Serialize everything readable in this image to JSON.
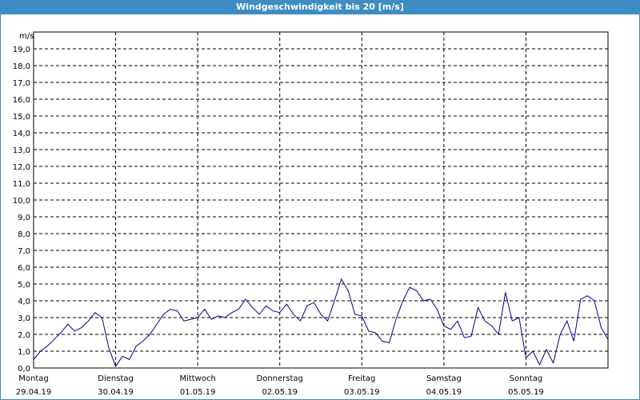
{
  "chart_data": {
    "type": "line",
    "title": "Windgeschwindigkeit bis 20 [m/s]",
    "y_label": "m/s",
    "ylim": [
      0,
      20
    ],
    "yticks": [
      {
        "value": 0,
        "label": "0,0"
      },
      {
        "value": 1,
        "label": "1,0"
      },
      {
        "value": 2,
        "label": "2,0"
      },
      {
        "value": 3,
        "label": "3,0"
      },
      {
        "value": 4,
        "label": "4,0"
      },
      {
        "value": 5,
        "label": "5,0"
      },
      {
        "value": 6,
        "label": "6,0"
      },
      {
        "value": 7,
        "label": "7,0"
      },
      {
        "value": 8,
        "label": "8,0"
      },
      {
        "value": 9,
        "label": "9,0"
      },
      {
        "value": 10,
        "label": "10,0"
      },
      {
        "value": 11,
        "label": "11,0"
      },
      {
        "value": 12,
        "label": "12,0"
      },
      {
        "value": 13,
        "label": "13,0"
      },
      {
        "value": 14,
        "label": "14,0"
      },
      {
        "value": 15,
        "label": "15,0"
      },
      {
        "value": 16,
        "label": "16,0"
      },
      {
        "value": 17,
        "label": "17,0"
      },
      {
        "value": 18,
        "label": "18,0"
      },
      {
        "value": 19,
        "label": "19,0"
      }
    ],
    "days": [
      {
        "name": "Montag",
        "date": "29.04.19"
      },
      {
        "name": "Dienstag",
        "date": "30.04.19"
      },
      {
        "name": "Mittwoch",
        "date": "01.05.19"
      },
      {
        "name": "Donnerstag",
        "date": "02.05.19"
      },
      {
        "name": "Freitag",
        "date": "03.05.19"
      },
      {
        "name": "Samstag",
        "date": "04.05.19"
      },
      {
        "name": "Sonntag",
        "date": "05.05.19"
      }
    ],
    "grid": true,
    "color": "#00008b",
    "values": [
      0.5,
      1.0,
      1.3,
      1.7,
      2.1,
      2.6,
      2.2,
      2.4,
      2.8,
      3.3,
      3.0,
      1.2,
      0.1,
      0.7,
      0.5,
      1.3,
      1.6,
      2.0,
      2.6,
      3.2,
      3.5,
      3.4,
      2.8,
      2.9,
      3.0,
      3.5,
      2.9,
      3.1,
      3.0,
      3.3,
      3.5,
      4.1,
      3.6,
      3.2,
      3.7,
      3.4,
      3.3,
      3.8,
      3.2,
      2.8,
      3.7,
      3.9,
      3.2,
      2.8,
      4.0,
      5.3,
      4.6,
      3.2,
      3.1,
      2.2,
      2.1,
      1.6,
      1.5,
      2.9,
      4.0,
      4.8,
      4.6,
      4.0,
      4.1,
      3.5,
      2.5,
      2.3,
      2.8,
      1.8,
      1.9,
      3.6,
      2.8,
      2.5,
      2.0,
      4.5,
      2.8,
      3.0,
      0.6,
      1.0,
      0.2,
      1.1,
      0.3,
      2.0,
      2.8,
      1.6,
      4.1,
      4.3,
      4.0,
      2.4,
      1.7
    ]
  }
}
